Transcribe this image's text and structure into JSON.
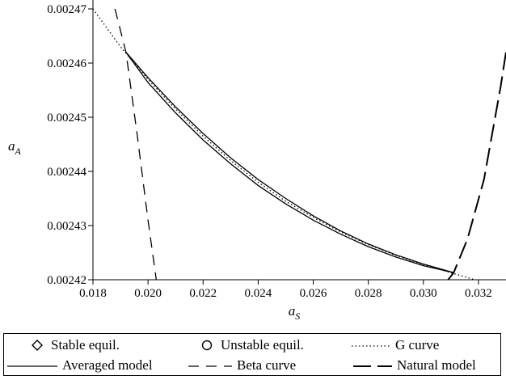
{
  "chart_data": {
    "type": "line",
    "xlabel": "a",
    "xlabel_sub": "S",
    "ylabel": "a",
    "ylabel_sub": "A",
    "xlim": [
      0.018,
      0.033
    ],
    "ylim": [
      0.00242,
      0.00247
    ],
    "x_ticks": [
      "0.018",
      "0.020",
      "0.022",
      "0.024",
      "0.026",
      "0.028",
      "0.030",
      "0.032"
    ],
    "x_tick_values": [
      0.018,
      0.02,
      0.022,
      0.024,
      0.026,
      0.028,
      0.03,
      0.032
    ],
    "y_ticks": [
      "0.00242",
      "0.00243",
      "0.00244",
      "0.00245",
      "0.00246",
      "0.00247"
    ],
    "y_tick_values": [
      0.00242,
      0.00243,
      0.00244,
      0.00245,
      0.00246,
      0.00247
    ],
    "grid": false,
    "legend_placement": "below",
    "series": [
      {
        "name": "G curve",
        "style": "dotted",
        "x": [
          0.018,
          0.019,
          0.02,
          0.021,
          0.022,
          0.023,
          0.024,
          0.025,
          0.026,
          0.027,
          0.028,
          0.029,
          0.03,
          0.031,
          0.032,
          0.033
        ],
        "y": [
          0.00247,
          0.002463,
          0.002457,
          0.0024515,
          0.0024465,
          0.002442,
          0.002438,
          0.0024345,
          0.0024315,
          0.0024288,
          0.0024265,
          0.0024245,
          0.0024228,
          0.0024213,
          0.0024198,
          0.0024188
        ]
      },
      {
        "name": "Averaged model",
        "style": "solid",
        "branches": [
          {
            "x": [
              0.0192,
              0.02,
              0.021,
              0.022,
              0.023,
              0.024,
              0.025,
              0.026,
              0.027,
              0.028,
              0.029,
              0.03,
              0.0311
            ],
            "y": [
              0.002462,
              0.0024573,
              0.0024519,
              0.002447,
              0.0024425,
              0.0024385,
              0.002435,
              0.0024318,
              0.002429,
              0.0024266,
              0.0024246,
              0.0024229,
              0.0024213
            ]
          },
          {
            "x": [
              0.0192,
              0.02,
              0.021,
              0.022,
              0.023,
              0.024,
              0.025,
              0.026,
              0.027,
              0.028,
              0.029,
              0.03,
              0.0311
            ],
            "y": [
              0.002462,
              0.0024564,
              0.0024508,
              0.0024458,
              0.0024414,
              0.0024374,
              0.002434,
              0.002431,
              0.0024284,
              0.0024261,
              0.0024242,
              0.0024226,
              0.0024213
            ]
          }
        ]
      },
      {
        "name": "Beta curve",
        "style": "dashed",
        "x": [
          0.0188,
          0.0192,
          0.0196,
          0.02,
          0.0203
        ],
        "y": [
          0.00247,
          0.002462,
          0.002447,
          0.002431,
          0.00242
        ]
      },
      {
        "name": "Natural model",
        "style": "long-dashed",
        "x": [
          0.0309,
          0.0311,
          0.0316,
          0.0322,
          0.0328,
          0.033
        ],
        "y": [
          0.00242,
          0.0024213,
          0.0024275,
          0.0024385,
          0.0024555,
          0.002462
        ]
      }
    ],
    "legend": [
      {
        "marker": "diamond",
        "label": "Stable equil."
      },
      {
        "marker": "circle",
        "label": "Unstable equil."
      },
      {
        "marker": "dotted",
        "label": "G curve"
      },
      {
        "marker": "solid",
        "label": "Averaged model"
      },
      {
        "marker": "dashed",
        "label": "Beta curve"
      },
      {
        "marker": "long-dashed",
        "label": "Natural model"
      }
    ]
  }
}
